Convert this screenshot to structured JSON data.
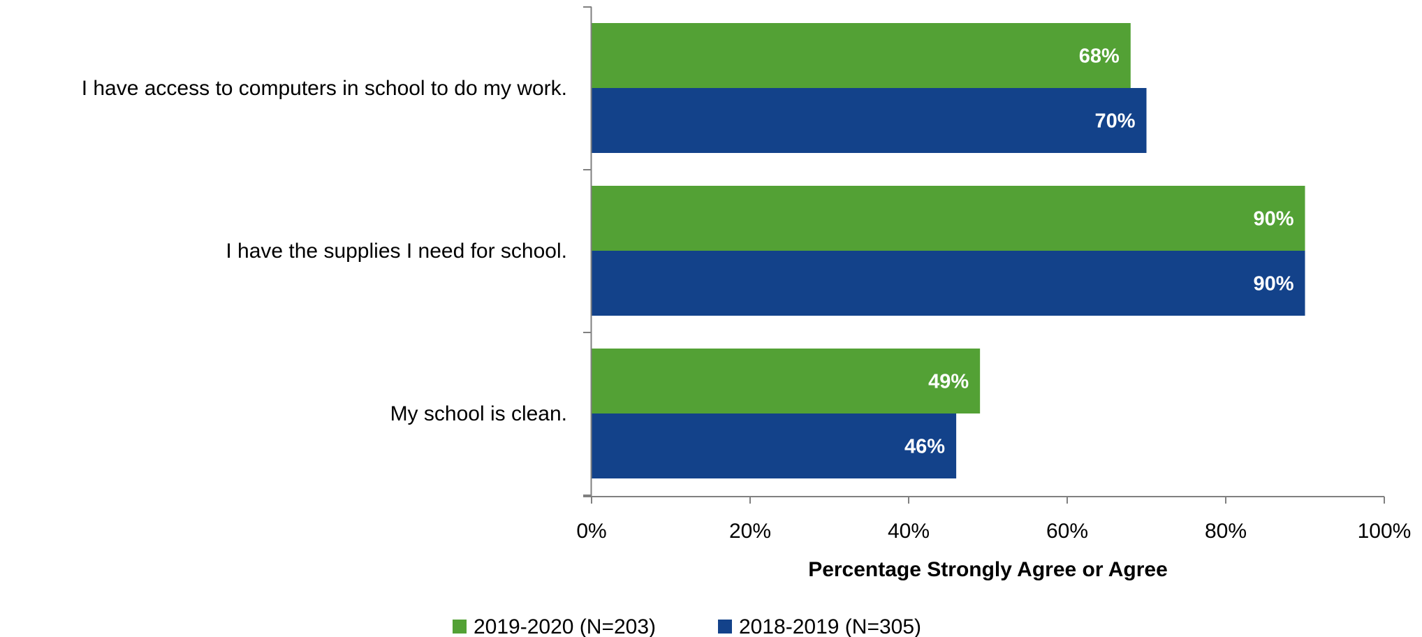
{
  "chart_data": {
    "type": "bar",
    "orientation": "horizontal",
    "categories": [
      "I have access to computers in school to do my work.",
      "I have the supplies I need for school.",
      "My school is clean."
    ],
    "series": [
      {
        "name": "2019-2020 (N=203)",
        "color": "#53a135",
        "values": [
          68,
          90,
          49
        ],
        "labels": [
          "68%",
          "90%",
          "49%"
        ]
      },
      {
        "name": "2018-2019 (N=305)",
        "color": "#13428a",
        "values": [
          70,
          90,
          46
        ],
        "labels": [
          "70%",
          "90%",
          "46%"
        ]
      }
    ],
    "xlabel": "Percentage Strongly Agree or Agree",
    "xlim": [
      0,
      100
    ],
    "xticks": [
      0,
      20,
      40,
      60,
      80,
      100
    ],
    "xtick_labels": [
      "0%",
      "20%",
      "40%",
      "60%",
      "80%",
      "100%"
    ],
    "grid": false,
    "legend_position": "bottom-center"
  }
}
